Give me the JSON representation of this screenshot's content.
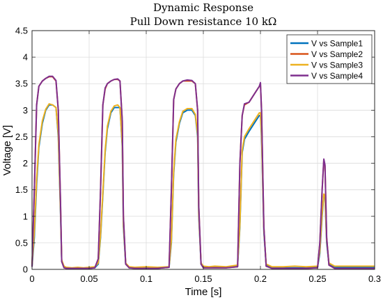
{
  "chart_data": {
    "type": "line",
    "title": "Dynamic Response",
    "subtitle": "Pull Down resistance 10 kΩ",
    "xlabel": "Time [s]",
    "ylabel": "Voltage [V]",
    "xlim": [
      0,
      0.3
    ],
    "ylim": [
      0,
      4.5
    ],
    "xticks": [
      0,
      0.05,
      0.1,
      0.15,
      0.2,
      0.25,
      0.3
    ],
    "xtick_labels": [
      "0",
      "0.05",
      "0.1",
      "0.15",
      "0.2",
      "0.25",
      "0.3"
    ],
    "yticks": [
      0,
      0.5,
      1,
      1.5,
      2,
      2.5,
      3,
      3.5,
      4,
      4.5
    ],
    "ytick_labels": [
      "0",
      "0.5",
      "1",
      "1.5",
      "2",
      "2.5",
      "3",
      "3.5",
      "4",
      "4.5"
    ],
    "grid": true,
    "legend_position": "top-right",
    "series": [
      {
        "name": "V vs Sample1",
        "color": "#0072BD",
        "x": [
          0,
          0.002,
          0.004,
          0.006,
          0.009,
          0.012,
          0.015,
          0.018,
          0.021,
          0.023,
          0.025,
          0.026,
          0.028,
          0.03,
          0.035,
          0.04,
          0.045,
          0.05,
          0.055,
          0.058,
          0.06,
          0.062,
          0.064,
          0.066,
          0.069,
          0.072,
          0.075,
          0.077,
          0.079,
          0.08,
          0.082,
          0.085,
          0.09,
          0.1,
          0.11,
          0.12,
          0.122,
          0.124,
          0.126,
          0.129,
          0.132,
          0.136,
          0.14,
          0.143,
          0.145,
          0.146,
          0.148,
          0.15,
          0.155,
          0.16,
          0.17,
          0.18,
          0.182,
          0.184,
          0.186,
          0.19,
          0.193,
          0.196,
          0.199,
          0.2,
          0.201,
          0.203,
          0.205,
          0.21,
          0.22,
          0.23,
          0.24,
          0.25,
          0.252,
          0.254,
          0.2555,
          0.2565,
          0.258,
          0.26,
          0.265,
          0.27,
          0.28,
          0.29,
          0.3
        ],
        "y": [
          0.05,
          0.6,
          1.6,
          2.3,
          2.75,
          3.0,
          3.1,
          3.1,
          3.05,
          2.5,
          1.0,
          0.15,
          0.04,
          0.02,
          0.02,
          0.02,
          0.02,
          0.02,
          0.03,
          0.1,
          0.6,
          1.4,
          2.2,
          2.65,
          2.95,
          3.05,
          3.05,
          3.05,
          2.3,
          0.8,
          0.1,
          0.04,
          0.03,
          0.03,
          0.03,
          0.04,
          0.5,
          1.8,
          2.4,
          2.75,
          2.95,
          3.0,
          3.0,
          2.9,
          2.5,
          1.0,
          0.1,
          0.04,
          0.04,
          0.04,
          0.04,
          0.06,
          0.8,
          2.2,
          2.45,
          2.6,
          2.7,
          2.8,
          2.9,
          2.9,
          2.5,
          0.7,
          0.08,
          0.03,
          0.03,
          0.03,
          0.03,
          0.04,
          0.3,
          1.0,
          1.4,
          1.35,
          0.5,
          0.1,
          0.04,
          0.04,
          0.04,
          0.04,
          0.04
        ]
      },
      {
        "name": "V vs Sample2",
        "color": "#D95319",
        "x": [
          0,
          0.002,
          0.004,
          0.006,
          0.009,
          0.012,
          0.015,
          0.018,
          0.021,
          0.023,
          0.025,
          0.026,
          0.028,
          0.03,
          0.035,
          0.04,
          0.045,
          0.05,
          0.055,
          0.058,
          0.06,
          0.062,
          0.064,
          0.066,
          0.069,
          0.072,
          0.075,
          0.077,
          0.079,
          0.08,
          0.082,
          0.085,
          0.09,
          0.1,
          0.11,
          0.12,
          0.122,
          0.124,
          0.126,
          0.129,
          0.132,
          0.136,
          0.14,
          0.143,
          0.145,
          0.146,
          0.148,
          0.15,
          0.155,
          0.16,
          0.17,
          0.18,
          0.182,
          0.184,
          0.186,
          0.19,
          0.193,
          0.196,
          0.199,
          0.2,
          0.201,
          0.203,
          0.205,
          0.21,
          0.22,
          0.23,
          0.24,
          0.25,
          0.252,
          0.254,
          0.2555,
          0.2565,
          0.258,
          0.26,
          0.265,
          0.27,
          0.28,
          0.29,
          0.3
        ],
        "y": [
          0.05,
          1.5,
          3.1,
          3.45,
          3.55,
          3.6,
          3.63,
          3.63,
          3.55,
          3.0,
          1.2,
          0.15,
          0.03,
          0.02,
          0.02,
          0.02,
          0.02,
          0.02,
          0.03,
          0.2,
          1.5,
          3.1,
          3.4,
          3.5,
          3.55,
          3.58,
          3.58,
          3.55,
          2.8,
          1.0,
          0.1,
          0.03,
          0.02,
          0.02,
          0.02,
          0.04,
          1.5,
          3.2,
          3.4,
          3.5,
          3.55,
          3.55,
          3.55,
          3.5,
          3.0,
          1.2,
          0.1,
          0.03,
          0.03,
          0.03,
          0.03,
          0.05,
          2.0,
          2.9,
          3.1,
          3.15,
          3.25,
          3.35,
          3.45,
          3.5,
          3.0,
          0.8,
          0.06,
          0.02,
          0.02,
          0.02,
          0.02,
          0.03,
          0.5,
          1.5,
          2.05,
          1.95,
          0.6,
          0.08,
          0.02,
          0.02,
          0.02,
          0.02,
          0.02
        ]
      },
      {
        "name": "V vs Sample3",
        "color": "#EDB120",
        "x": [
          0,
          0.002,
          0.004,
          0.006,
          0.009,
          0.012,
          0.015,
          0.018,
          0.021,
          0.023,
          0.025,
          0.026,
          0.028,
          0.03,
          0.035,
          0.04,
          0.045,
          0.05,
          0.055,
          0.058,
          0.06,
          0.062,
          0.064,
          0.066,
          0.069,
          0.072,
          0.075,
          0.077,
          0.079,
          0.08,
          0.082,
          0.085,
          0.09,
          0.1,
          0.11,
          0.12,
          0.122,
          0.124,
          0.126,
          0.129,
          0.132,
          0.136,
          0.14,
          0.143,
          0.145,
          0.146,
          0.148,
          0.15,
          0.155,
          0.16,
          0.17,
          0.18,
          0.182,
          0.184,
          0.186,
          0.19,
          0.193,
          0.196,
          0.199,
          0.2,
          0.201,
          0.203,
          0.205,
          0.21,
          0.22,
          0.23,
          0.24,
          0.25,
          0.252,
          0.254,
          0.2555,
          0.2565,
          0.258,
          0.26,
          0.265,
          0.27,
          0.28,
          0.29,
          0.3
        ],
        "y": [
          0.08,
          0.7,
          1.7,
          2.35,
          2.8,
          3.02,
          3.12,
          3.1,
          3.05,
          2.55,
          1.05,
          0.18,
          0.06,
          0.04,
          0.03,
          0.04,
          0.03,
          0.04,
          0.05,
          0.12,
          0.65,
          1.45,
          2.25,
          2.7,
          2.98,
          3.08,
          3.1,
          3.05,
          2.35,
          0.85,
          0.12,
          0.05,
          0.04,
          0.05,
          0.04,
          0.05,
          0.55,
          1.85,
          2.45,
          2.78,
          2.98,
          3.03,
          3.03,
          2.92,
          2.55,
          1.05,
          0.12,
          0.06,
          0.05,
          0.06,
          0.05,
          0.08,
          0.85,
          2.25,
          2.5,
          2.65,
          2.75,
          2.85,
          2.95,
          2.95,
          2.55,
          0.75,
          0.1,
          0.05,
          0.05,
          0.06,
          0.05,
          0.06,
          0.35,
          1.05,
          1.42,
          1.38,
          0.55,
          0.12,
          0.06,
          0.06,
          0.06,
          0.06,
          0.06
        ]
      },
      {
        "name": "V vs Sample4",
        "color": "#7E2F8E",
        "x": [
          0,
          0.002,
          0.004,
          0.006,
          0.009,
          0.012,
          0.015,
          0.018,
          0.021,
          0.023,
          0.025,
          0.026,
          0.028,
          0.03,
          0.035,
          0.04,
          0.045,
          0.05,
          0.055,
          0.058,
          0.06,
          0.062,
          0.064,
          0.066,
          0.069,
          0.072,
          0.075,
          0.077,
          0.079,
          0.08,
          0.082,
          0.085,
          0.09,
          0.1,
          0.11,
          0.12,
          0.122,
          0.124,
          0.126,
          0.129,
          0.132,
          0.136,
          0.14,
          0.143,
          0.145,
          0.146,
          0.148,
          0.15,
          0.155,
          0.16,
          0.17,
          0.18,
          0.182,
          0.184,
          0.186,
          0.19,
          0.193,
          0.196,
          0.199,
          0.2,
          0.201,
          0.203,
          0.205,
          0.21,
          0.22,
          0.23,
          0.24,
          0.25,
          0.252,
          0.254,
          0.2555,
          0.2565,
          0.258,
          0.26,
          0.265,
          0.27,
          0.28,
          0.29,
          0.3
        ],
        "y": [
          0.05,
          1.5,
          3.1,
          3.45,
          3.55,
          3.6,
          3.64,
          3.64,
          3.56,
          3.0,
          1.2,
          0.15,
          0.03,
          0.02,
          0.02,
          0.02,
          0.02,
          0.02,
          0.03,
          0.2,
          1.5,
          3.1,
          3.42,
          3.5,
          3.55,
          3.58,
          3.59,
          3.55,
          2.8,
          1.0,
          0.1,
          0.03,
          0.02,
          0.02,
          0.02,
          0.04,
          1.5,
          3.2,
          3.4,
          3.5,
          3.55,
          3.57,
          3.56,
          3.5,
          3.0,
          1.2,
          0.1,
          0.03,
          0.03,
          0.03,
          0.03,
          0.05,
          2.0,
          2.9,
          3.12,
          3.15,
          3.25,
          3.35,
          3.45,
          3.52,
          3.0,
          0.8,
          0.06,
          0.02,
          0.02,
          0.02,
          0.02,
          0.03,
          0.5,
          1.5,
          2.08,
          1.97,
          0.6,
          0.08,
          0.02,
          0.02,
          0.02,
          0.02,
          0.02
        ]
      }
    ]
  }
}
